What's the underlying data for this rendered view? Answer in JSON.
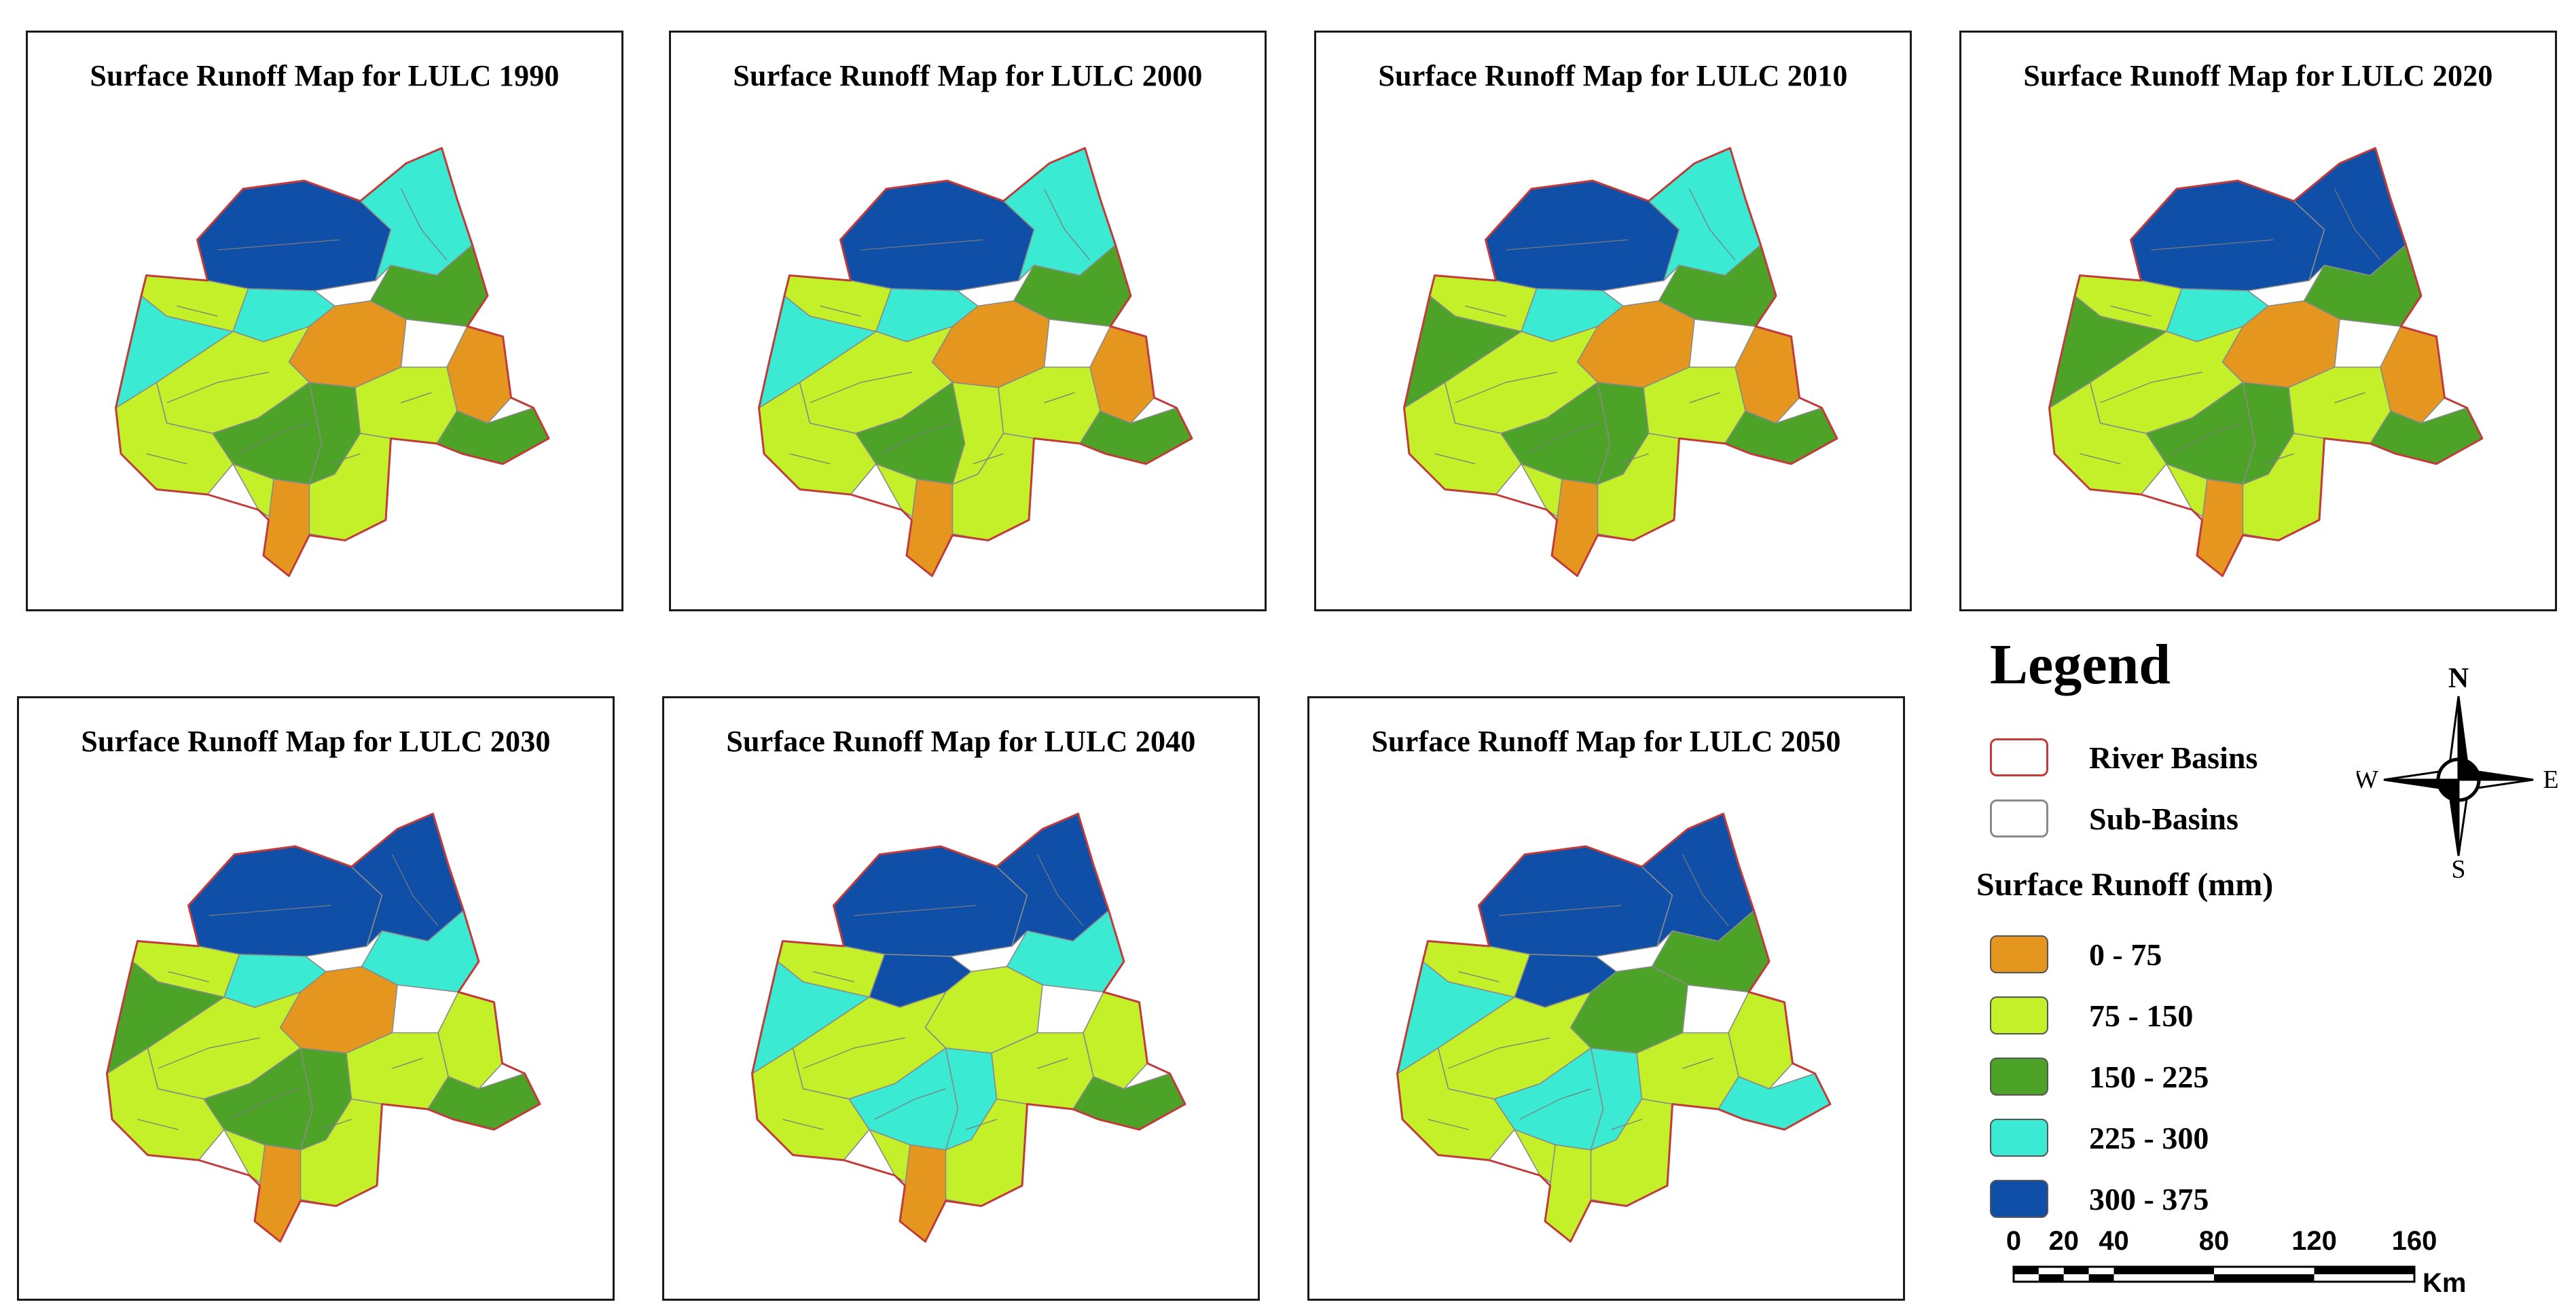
{
  "maps": [
    {
      "title": "Surface Runoff Map for LULC 1990",
      "classes": [
        4,
        3,
        1,
        3,
        2,
        0,
        0,
        1,
        2,
        2,
        1,
        2,
        1,
        1,
        0,
        3
      ]
    },
    {
      "title": "Surface Runoff Map for LULC 2000",
      "classes": [
        4,
        3,
        1,
        3,
        2,
        0,
        0,
        1,
        2,
        1,
        1,
        2,
        1,
        1,
        0,
        3
      ]
    },
    {
      "title": "Surface Runoff Map for LULC 2010",
      "classes": [
        4,
        3,
        1,
        3,
        2,
        0,
        0,
        1,
        2,
        2,
        1,
        2,
        1,
        1,
        0,
        2
      ]
    },
    {
      "title": "Surface Runoff Map for LULC 2020",
      "classes": [
        4,
        4,
        1,
        3,
        2,
        0,
        0,
        1,
        2,
        2,
        1,
        2,
        1,
        1,
        0,
        2
      ]
    },
    {
      "title": "Surface Runoff Map for LULC 2030",
      "classes": [
        4,
        4,
        1,
        3,
        3,
        0,
        1,
        1,
        2,
        2,
        1,
        2,
        1,
        1,
        0,
        2
      ]
    },
    {
      "title": "Surface Runoff Map for LULC 2040",
      "classes": [
        4,
        4,
        1,
        4,
        3,
        1,
        1,
        1,
        3,
        3,
        1,
        2,
        1,
        1,
        0,
        3
      ]
    },
    {
      "title": "Surface Runoff Map for LULC 2050",
      "classes": [
        4,
        4,
        1,
        4,
        2,
        2,
        1,
        1,
        3,
        3,
        1,
        3,
        1,
        1,
        1,
        3
      ]
    }
  ],
  "legend": {
    "title": "Legend",
    "river_basins": "River Basins",
    "sub_basins": "Sub-Basins",
    "runoff_title": "Surface Runoff (mm)",
    "classes": [
      {
        "label": "0 - 75",
        "color": "#E4961E"
      },
      {
        "label": "75 - 150",
        "color": "#C4F02A"
      },
      {
        "label": "150 - 225",
        "color": "#4CA328"
      },
      {
        "label": "225 - 300",
        "color": "#3AEAD2"
      },
      {
        "label": "300 - 375",
        "color": "#0F4FA8"
      }
    ],
    "river_basin_color": "#C23B3B",
    "sub_basin_color": "#8A8A8A"
  },
  "compass": {
    "n": "N",
    "s": "S",
    "e": "E",
    "w": "W"
  },
  "scale": {
    "ticks": [
      "0",
      "20",
      "40",
      "80",
      "120",
      "160"
    ],
    "unit": "Km"
  }
}
